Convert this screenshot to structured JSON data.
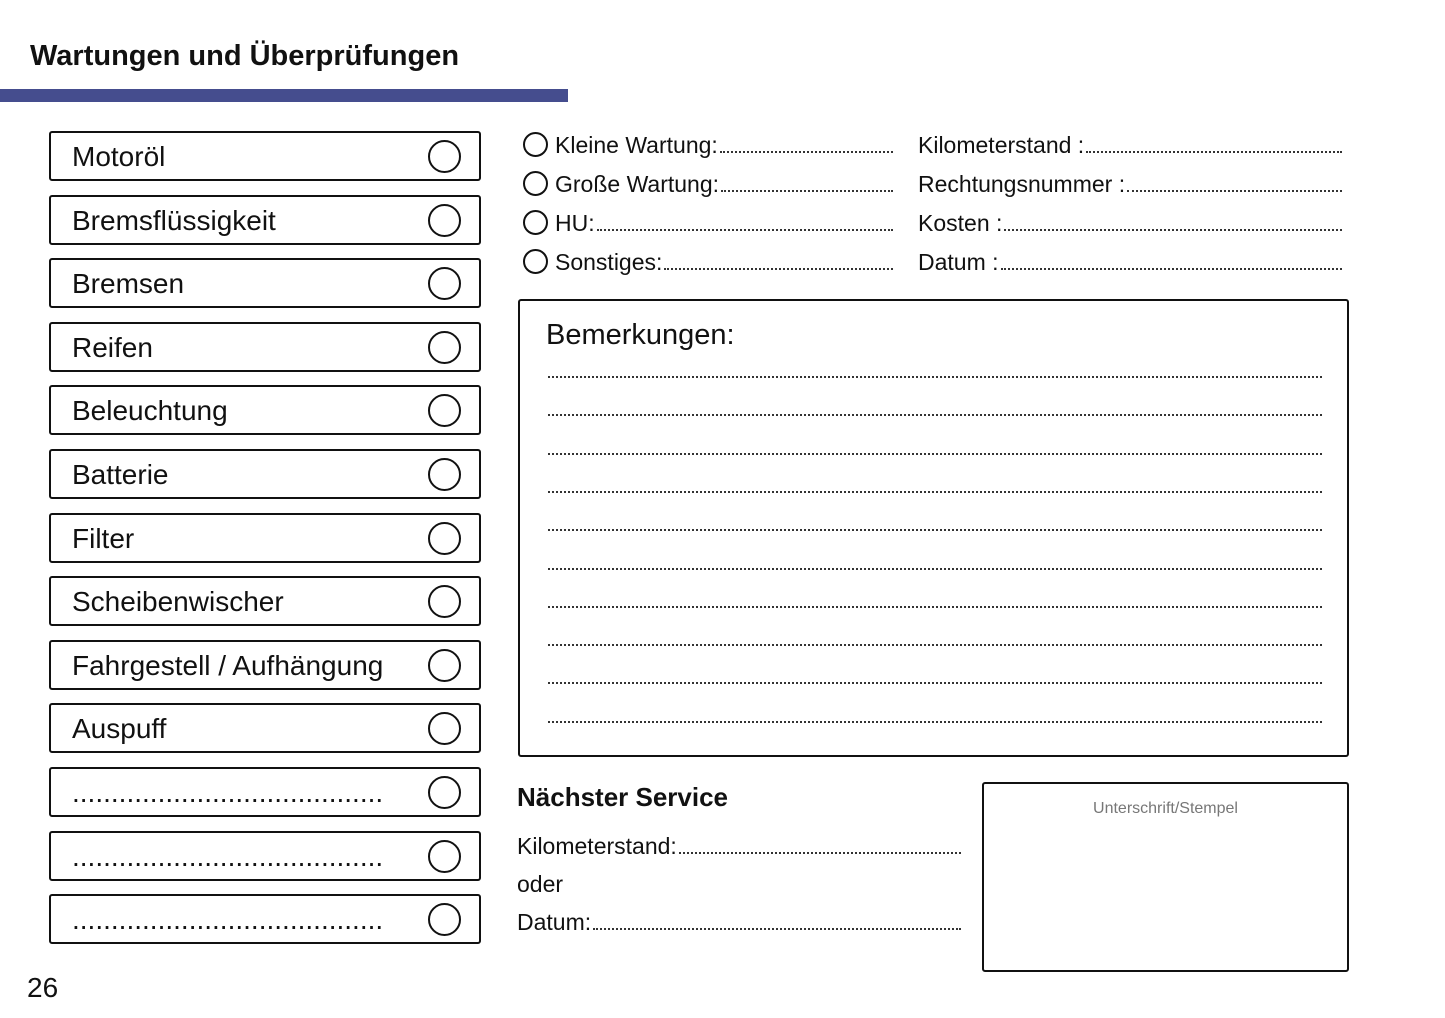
{
  "header": {
    "title": "Wartungen und Überprüfungen",
    "accent_color": "#454d8e"
  },
  "checklist": [
    "Motoröl",
    "Bremsflüssigkeit",
    "Bremsen",
    "Reifen",
    "Beleuchtung",
    "Batterie",
    "Filter",
    "Scheibenwischer",
    "Fahrgestell / Aufhängung",
    "Auspuff",
    "........................................",
    "........................................",
    "........................................"
  ],
  "service_types": [
    "Kleine Wartung:",
    "Große Wartung:",
    "HU:",
    "Sonstiges:"
  ],
  "details": [
    "Kilometerstand :",
    "Rechtungsnummer :",
    "Kosten :",
    "Datum :"
  ],
  "remarks": {
    "title": "Bemerkungen:"
  },
  "next_service": {
    "title": "Nächster Service",
    "km_label": "Kilometerstand:",
    "or_label": "oder",
    "date_label": "Datum:"
  },
  "signature": {
    "label": "Unterschrift/Stempel"
  },
  "page_number": "26"
}
